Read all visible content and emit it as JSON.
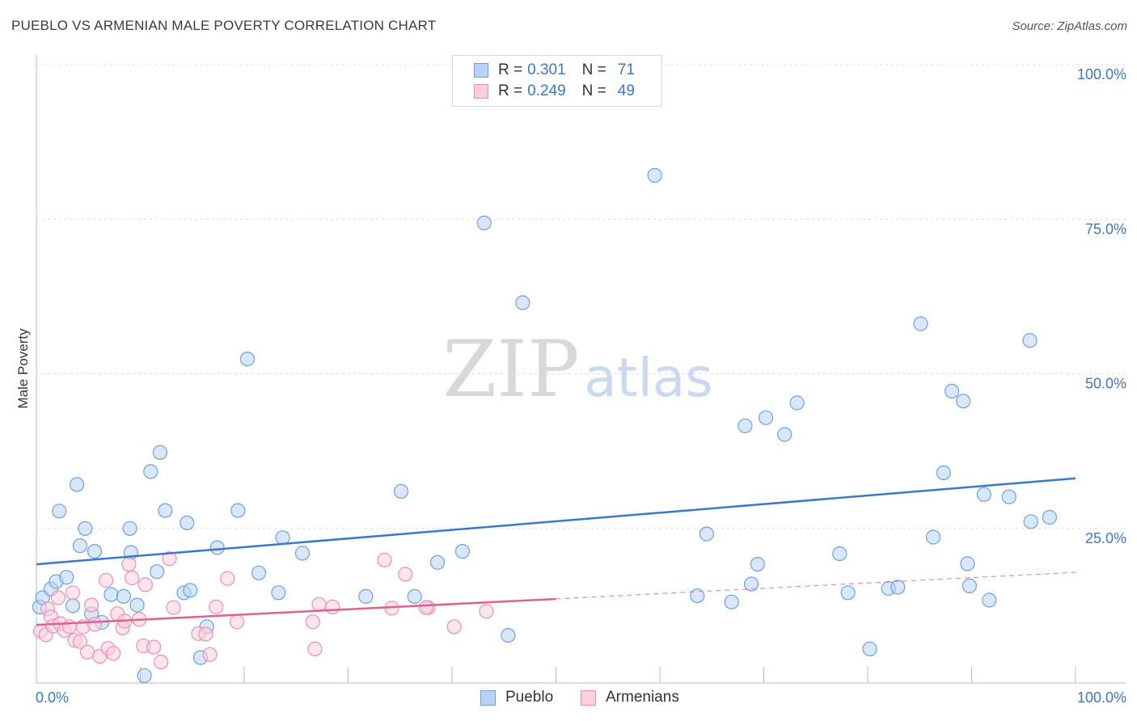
{
  "header": {
    "title": "PUEBLO VS ARMENIAN MALE POVERTY CORRELATION CHART",
    "source": "Source: ZipAtlas.com"
  },
  "watermark": {
    "zip": "ZIP",
    "atlas": "atlas"
  },
  "legend": {
    "rows": [
      {
        "r_label": "R =",
        "r_value": "0.301",
        "n_label": "N =",
        "n_value": "71",
        "color": "#6fa0e0",
        "fill": "#b8d3f5"
      },
      {
        "r_label": "R =",
        "r_value": "0.249",
        "n_label": "N =",
        "n_value": "49",
        "color": "#f08fb0",
        "fill": "#fbd0de"
      }
    ]
  },
  "bottom_legend": {
    "pueblo": "Pueblo",
    "armenians": "Armenians"
  },
  "chart_data": {
    "type": "scatter",
    "title": "PUEBLO VS ARMENIAN MALE POVERTY CORRELATION CHART",
    "xlabel": "",
    "ylabel": "Male Poverty",
    "xlim": [
      0,
      100
    ],
    "ylim": [
      0,
      100
    ],
    "x_tick_labels": [
      "0.0%",
      "100.0%"
    ],
    "y_tick_labels": [
      "25.0%",
      "50.0%",
      "75.0%",
      "100.0%"
    ],
    "y_ticks": [
      25,
      50,
      75,
      100
    ],
    "grid": true,
    "legend_position": "top-center",
    "series": [
      {
        "name": "Pueblo",
        "color": "#3a78c9",
        "fill": "#b8d3f5",
        "stroke": "#6fa0e0",
        "trend": {
          "x": [
            0,
            100
          ],
          "y": [
            19.2,
            33.1
          ]
        },
        "points": [
          [
            0.3,
            12.3
          ],
          [
            0.6,
            13.8
          ],
          [
            1.4,
            15.2
          ],
          [
            1.9,
            16.4
          ],
          [
            2.2,
            27.8
          ],
          [
            2.9,
            17.1
          ],
          [
            3.5,
            12.5
          ],
          [
            3.9,
            32.1
          ],
          [
            4.2,
            22.2
          ],
          [
            4.7,
            25.0
          ],
          [
            5.3,
            11.2
          ],
          [
            5.6,
            21.3
          ],
          [
            6.3,
            9.8
          ],
          [
            7.2,
            14.3
          ],
          [
            8.4,
            14.0
          ],
          [
            9.0,
            25.0
          ],
          [
            9.1,
            21.1
          ],
          [
            9.7,
            12.6
          ],
          [
            10.4,
            1.2
          ],
          [
            11.0,
            34.2
          ],
          [
            11.6,
            18.0
          ],
          [
            11.9,
            37.3
          ],
          [
            12.4,
            27.9
          ],
          [
            14.2,
            14.6
          ],
          [
            14.5,
            25.9
          ],
          [
            14.8,
            15.0
          ],
          [
            15.8,
            4.1
          ],
          [
            16.4,
            9.1
          ],
          [
            17.4,
            21.9
          ],
          [
            19.4,
            27.9
          ],
          [
            20.3,
            52.4
          ],
          [
            21.4,
            17.8
          ],
          [
            23.3,
            14.6
          ],
          [
            23.7,
            23.5
          ],
          [
            25.6,
            21.0
          ],
          [
            31.7,
            14.0
          ],
          [
            35.1,
            31.0
          ],
          [
            36.4,
            14.0
          ],
          [
            38.6,
            19.5
          ],
          [
            41.0,
            21.3
          ],
          [
            43.1,
            74.4
          ],
          [
            45.4,
            7.7
          ],
          [
            46.8,
            61.5
          ],
          [
            59.5,
            82.1
          ],
          [
            63.6,
            14.1
          ],
          [
            64.5,
            24.1
          ],
          [
            66.9,
            13.1
          ],
          [
            68.2,
            41.6
          ],
          [
            68.8,
            16.0
          ],
          [
            69.4,
            19.2
          ],
          [
            70.2,
            42.9
          ],
          [
            72.0,
            40.2
          ],
          [
            73.2,
            45.3
          ],
          [
            77.3,
            20.9
          ],
          [
            78.1,
            14.6
          ],
          [
            80.2,
            5.5
          ],
          [
            82.0,
            15.3
          ],
          [
            82.9,
            15.5
          ],
          [
            85.1,
            58.1
          ],
          [
            86.3,
            23.6
          ],
          [
            87.3,
            34.0
          ],
          [
            88.1,
            47.2
          ],
          [
            89.2,
            45.6
          ],
          [
            89.6,
            19.3
          ],
          [
            89.8,
            15.7
          ],
          [
            91.2,
            30.5
          ],
          [
            91.7,
            13.4
          ],
          [
            93.6,
            30.1
          ],
          [
            95.6,
            55.4
          ],
          [
            95.7,
            26.1
          ],
          [
            97.5,
            26.8
          ]
        ]
      },
      {
        "name": "Armenians",
        "color": "#e0608f",
        "fill": "#fbd0de",
        "stroke": "#f08fb0",
        "trend": {
          "x": [
            0,
            50
          ],
          "y": [
            9.4,
            13.6
          ]
        },
        "trend_dashed": {
          "x": [
            50,
            100
          ],
          "y": [
            13.6,
            17.9
          ]
        },
        "points": [
          [
            0.4,
            8.4
          ],
          [
            0.9,
            7.8
          ],
          [
            1.1,
            12.0
          ],
          [
            1.4,
            10.7
          ],
          [
            1.6,
            9.2
          ],
          [
            2.1,
            13.8
          ],
          [
            2.3,
            9.6
          ],
          [
            2.7,
            8.5
          ],
          [
            3.2,
            9.1
          ],
          [
            3.5,
            14.6
          ],
          [
            3.7,
            6.9
          ],
          [
            4.2,
            6.7
          ],
          [
            4.5,
            9.1
          ],
          [
            4.9,
            5.0
          ],
          [
            5.3,
            12.6
          ],
          [
            5.6,
            9.5
          ],
          [
            6.1,
            4.3
          ],
          [
            6.7,
            16.6
          ],
          [
            6.9,
            5.6
          ],
          [
            7.4,
            4.8
          ],
          [
            7.8,
            11.2
          ],
          [
            8.3,
            8.9
          ],
          [
            8.5,
            10.0
          ],
          [
            8.9,
            19.2
          ],
          [
            9.2,
            17.0
          ],
          [
            9.9,
            10.3
          ],
          [
            10.3,
            6.0
          ],
          [
            10.5,
            15.9
          ],
          [
            11.3,
            5.8
          ],
          [
            12.0,
            3.4
          ],
          [
            12.8,
            20.1
          ],
          [
            13.2,
            12.2
          ],
          [
            15.6,
            8.0
          ],
          [
            16.3,
            7.9
          ],
          [
            16.7,
            4.6
          ],
          [
            17.3,
            12.3
          ],
          [
            18.4,
            16.9
          ],
          [
            19.3,
            9.9
          ],
          [
            26.6,
            9.9
          ],
          [
            26.8,
            5.5
          ],
          [
            27.2,
            12.7
          ],
          [
            28.5,
            12.3
          ],
          [
            33.5,
            19.9
          ],
          [
            34.2,
            12.1
          ],
          [
            35.5,
            17.6
          ],
          [
            37.7,
            12.2
          ],
          [
            40.2,
            9.1
          ],
          [
            43.3,
            11.6
          ],
          [
            37.5,
            12.2
          ]
        ]
      }
    ]
  }
}
